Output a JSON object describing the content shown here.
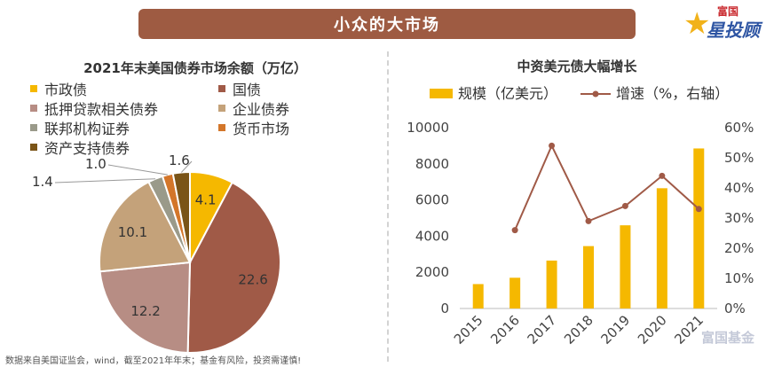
{
  "banner": {
    "title": "小众的大市场"
  },
  "logo": {
    "text_top": "富国",
    "text_main": "星投顾"
  },
  "footnote": "数据来自美国证监会，wind，截至2021年年末；基金有风险，投资需谨慎!",
  "watermark": "富国基金",
  "chart_data": [
    {
      "type": "pie",
      "title": "2021年末美国债券市场余额（万亿）",
      "legend_position": "top",
      "slices": [
        {
          "label": "市政债",
          "value": 4.1,
          "color": "#f5b800"
        },
        {
          "label": "国债",
          "value": 22.6,
          "color": "#a05a47"
        },
        {
          "label": "抵押贷款相关债券",
          "value": 12.2,
          "color": "#b78d84"
        },
        {
          "label": "企业债券",
          "value": 10.1,
          "color": "#c4a27a"
        },
        {
          "label": "联邦机构证券",
          "value": 1.4,
          "color": "#9a9a8a"
        },
        {
          "label": "货币市场",
          "value": 1.0,
          "color": "#d3762a"
        },
        {
          "label": "资产支持债券",
          "value": 1.6,
          "color": "#7a5417"
        }
      ]
    },
    {
      "type": "bar",
      "title": "中资美元债大幅增长",
      "legend_position": "top",
      "categories": [
        "2015",
        "2016",
        "2017",
        "2018",
        "2019",
        "2020",
        "2021"
      ],
      "series": [
        {
          "name": "规模（亿美元）",
          "type": "bar",
          "axis": "left",
          "color": "#f5b800",
          "values": [
            1350,
            1700,
            2650,
            3450,
            4600,
            6650,
            8850
          ]
        },
        {
          "name": "增速（%，右轴）",
          "type": "line",
          "axis": "right",
          "color": "#a05a47",
          "values": [
            null,
            26,
            54,
            29,
            34,
            44,
            33
          ]
        }
      ],
      "y_left": {
        "min": 0,
        "max": 10000,
        "ticks": [
          "0",
          "2000",
          "4000",
          "6000",
          "8000",
          "10000"
        ]
      },
      "y_right": {
        "min": 0,
        "max": 60,
        "ticks": [
          "0%",
          "10%",
          "20%",
          "30%",
          "40%",
          "50%",
          "60%"
        ]
      },
      "grid": false
    }
  ]
}
